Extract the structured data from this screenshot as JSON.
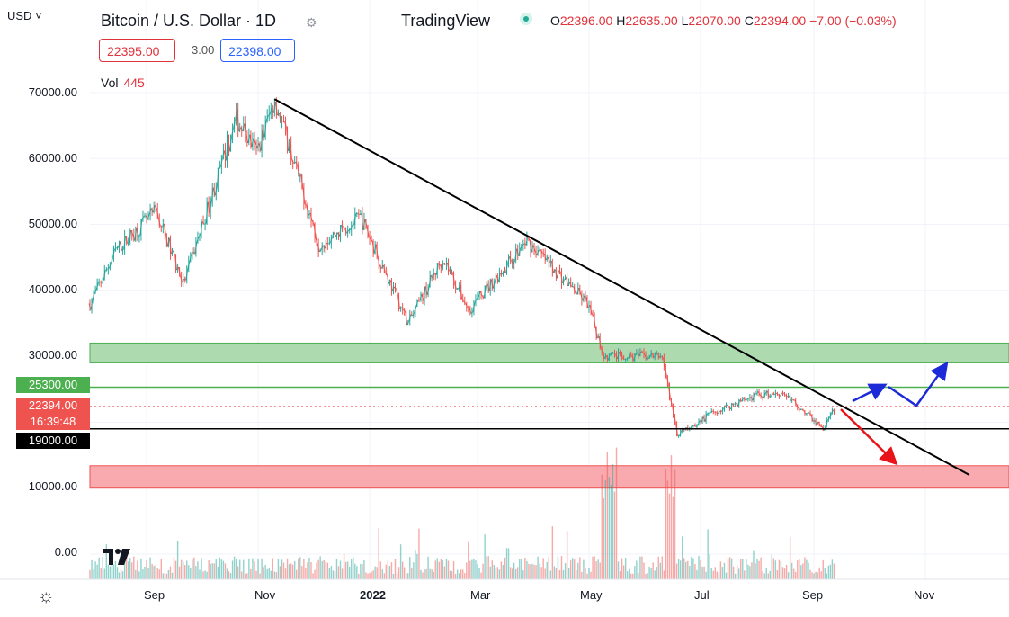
{
  "header": {
    "currency": "USD",
    "symbol_title": "Bitcoin / U.S. Dollar · 1D",
    "brand": "TradingView",
    "ohlc": {
      "o_label": "O",
      "o": "22396.00",
      "h_label": "H",
      "h": "22635.00",
      "l_label": "L",
      "l": "22070.00",
      "c_label": "C",
      "c": "22394.00",
      "change": "−7.00 (−0.03%)"
    },
    "bid": "22395.00",
    "spread": "3.00",
    "ask": "22398.00",
    "volume_label": "Vol",
    "volume_value": "445"
  },
  "price_axis": {
    "labels": [
      "70000.00",
      "60000.00",
      "50000.00",
      "40000.00",
      "30000.00",
      "10000.00",
      "0.00"
    ],
    "pills": {
      "level_green": "25300.00",
      "last_price": "22394.00",
      "countdown": "16:39:48",
      "level_black": "19000.00"
    }
  },
  "time_axis": {
    "labels": [
      "Sep",
      "Nov",
      "2022",
      "Mar",
      "May",
      "Jul",
      "Sep",
      "Nov"
    ]
  },
  "colors": {
    "up": "#26a69a",
    "down": "#ef5350",
    "green_zone": "#a5d6a7",
    "red_zone": "#f7a1a5",
    "level_green": "#4caf50",
    "trendline": "#000000",
    "arrow_up": "#1c2ad8",
    "arrow_down": "#e8141a"
  },
  "chart_data": {
    "type": "candlestick",
    "title": "Bitcoin / U.S. Dollar · 1D",
    "ylim": [
      -4000,
      80000
    ],
    "price_path": [
      [
        "2021-08-01",
        38000
      ],
      [
        "2021-08-15",
        46000
      ],
      [
        "2021-09-06",
        52000
      ],
      [
        "2021-09-21",
        41000
      ],
      [
        "2021-10-20",
        66000
      ],
      [
        "2021-10-31",
        61000
      ],
      [
        "2021-11-10",
        69000
      ],
      [
        "2021-12-04",
        47000
      ],
      [
        "2021-12-27",
        51000
      ],
      [
        "2022-01-22",
        35000
      ],
      [
        "2022-02-10",
        45000
      ],
      [
        "2022-02-24",
        37000
      ],
      [
        "2022-03-28",
        47500
      ],
      [
        "2022-04-30",
        38000
      ],
      [
        "2022-05-09",
        30000
      ],
      [
        "2022-06-10",
        30000
      ],
      [
        "2022-06-18",
        18000
      ],
      [
        "2022-07-08",
        21500
      ],
      [
        "2022-07-30",
        24000
      ],
      [
        "2022-08-15",
        24500
      ],
      [
        "2022-09-06",
        19000
      ],
      [
        "2022-09-13",
        22394
      ]
    ],
    "horizontal_levels": [
      25300,
      19000
    ],
    "zones": [
      {
        "from": 29000,
        "to": 32000
      },
      {
        "from": 10000,
        "to": 13400
      }
    ],
    "trendline": [
      [
        "2021-11-10",
        69000
      ],
      [
        "2022-11-25",
        12000
      ]
    ],
    "volume_last": 445
  }
}
